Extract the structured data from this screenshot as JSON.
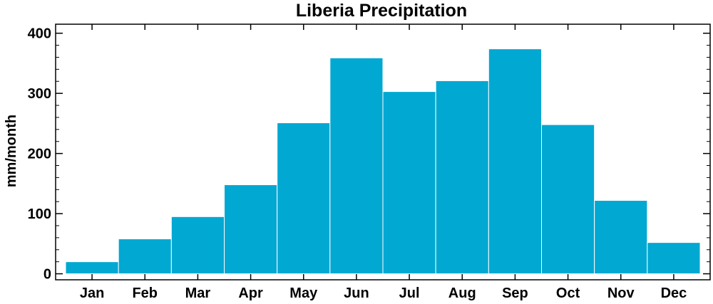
{
  "chart_data": {
    "type": "bar",
    "title": "Liberia Precipitation",
    "xlabel": "",
    "ylabel": "mm/month",
    "categories": [
      "Jan",
      "Feb",
      "Mar",
      "Apr",
      "May",
      "Jun",
      "Jul",
      "Aug",
      "Sep",
      "Oct",
      "Nov",
      "Dec"
    ],
    "values": [
      20,
      58,
      95,
      148,
      251,
      359,
      303,
      321,
      374,
      248,
      122,
      52
    ],
    "ylim": [
      -10,
      415
    ],
    "yticks": [
      0,
      100,
      200,
      300,
      400
    ],
    "bar_color": "#00a8d2",
    "bar_edge_color": "#ffffff",
    "grid": false
  }
}
